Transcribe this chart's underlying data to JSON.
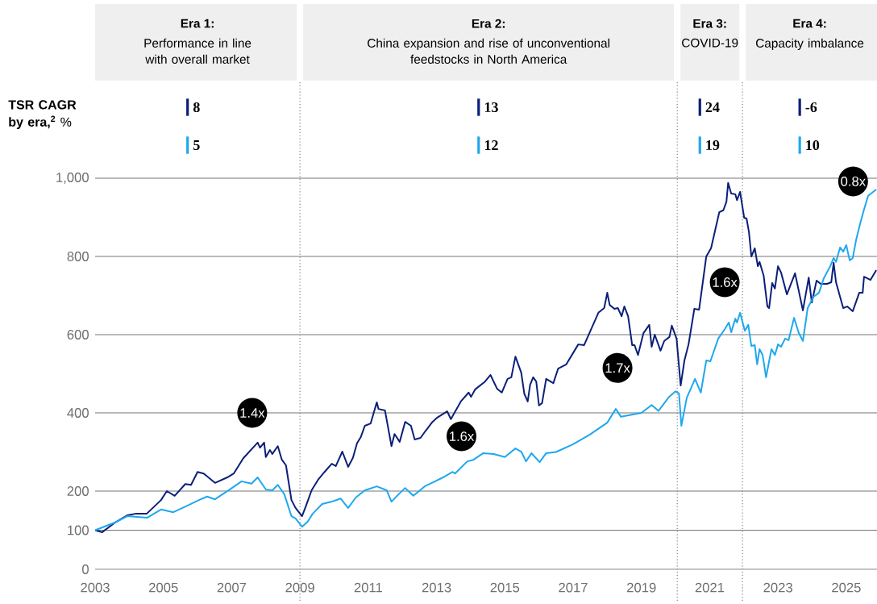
{
  "chart_data": {
    "type": "line",
    "series": [
      {
        "color": "#0b1f7a",
        "x": [
          2003.0,
          2003.21,
          2003.59,
          2003.94,
          2004.18,
          2004.51,
          2004.93,
          2005.1,
          2005.33,
          2005.64,
          2005.81,
          2006.0,
          2006.18,
          2006.51,
          2006.87,
          2007.06,
          2007.34,
          2007.76,
          2007.83,
          2007.95,
          2008.0,
          2008.12,
          2008.19,
          2008.35,
          2008.47,
          2008.59,
          2008.75,
          2008.87,
          2009.06,
          2009.18,
          2009.34,
          2009.53,
          2009.72,
          2009.93,
          2010.05,
          2010.24,
          2010.41,
          2010.55,
          2010.67,
          2010.78,
          2010.9,
          2011.07,
          2011.25,
          2011.3,
          2011.49,
          2011.68,
          2011.77,
          2011.92,
          2012.08,
          2012.25,
          2012.36,
          2012.53,
          2012.67,
          2012.88,
          2013.02,
          2013.31,
          2013.42,
          2013.71,
          2013.94,
          2014.01,
          2014.13,
          2014.42,
          2014.58,
          2014.77,
          2014.91,
          2015.08,
          2015.19,
          2015.31,
          2015.48,
          2015.57,
          2015.67,
          2015.74,
          2015.83,
          2015.92,
          2016.0,
          2016.09,
          2016.21,
          2016.42,
          2016.56,
          2016.8,
          2017.15,
          2017.32,
          2017.74,
          2017.91,
          2018.0,
          2018.07,
          2018.21,
          2018.31,
          2018.42,
          2018.5,
          2018.61,
          2018.73,
          2018.8,
          2018.9,
          2019.06,
          2019.23,
          2019.3,
          2019.39,
          2019.56,
          2019.67,
          2019.82,
          2019.89,
          2020.03,
          2020.15,
          2020.26,
          2020.38,
          2020.55,
          2020.69,
          2020.9,
          2021.04,
          2021.28,
          2021.4,
          2021.49,
          2021.54,
          2021.63,
          2021.75,
          2021.8,
          2021.89,
          2022.01,
          2022.08,
          2022.15,
          2022.22,
          2022.32,
          2022.41,
          2022.46,
          2022.58,
          2022.69,
          2022.74,
          2022.83,
          2022.91,
          2023.0,
          2023.09,
          2023.26,
          2023.5,
          2023.73,
          2023.9,
          2023.99,
          2024.13,
          2024.25,
          2024.44,
          2024.56,
          2024.63,
          2024.7,
          2024.91,
          2025.03,
          2025.19,
          2025.38,
          2025.48,
          2025.52,
          2025.71,
          2025.88
        ],
        "values": [
          100,
          95,
          120,
          138,
          142,
          142,
          177,
          200,
          188,
          218,
          216,
          249,
          245,
          221,
          235,
          245,
          284,
          324,
          311,
          324,
          287,
          305,
          295,
          315,
          280,
          266,
          177,
          157,
          136,
          163,
          202,
          229,
          249,
          270,
          264,
          301,
          262,
          285,
          322,
          338,
          367,
          373,
          427,
          410,
          406,
          315,
          346,
          326,
          377,
          367,
          332,
          336,
          353,
          377,
          388,
          404,
          384,
          429,
          452,
          441,
          460,
          480,
          497,
          462,
          452,
          487,
          491,
          544,
          503,
          449,
          429,
          472,
          491,
          480,
          419,
          425,
          487,
          476,
          513,
          524,
          575,
          573,
          656,
          668,
          707,
          676,
          666,
          668,
          647,
          672,
          647,
          573,
          573,
          548,
          604,
          625,
          569,
          600,
          559,
          584,
          594,
          623,
          590,
          470,
          534,
          575,
          666,
          664,
          800,
          821,
          913,
          918,
          940,
          988,
          961,
          959,
          944,
          965,
          899,
          897,
          862,
          800,
          821,
          775,
          786,
          751,
          672,
          668,
          732,
          718,
          775,
          759,
          703,
          757,
          662,
          746,
          682,
          738,
          730,
          730,
          734,
          784,
          734,
          668,
          672,
          660,
          707,
          707,
          748,
          740,
          765
        ]
      },
      {
        "color": "#1ea8ee",
        "x": [
          2003.0,
          2003.59,
          2003.94,
          2004.53,
          2004.93,
          2005.29,
          2005.71,
          2006.04,
          2006.28,
          2006.51,
          2006.94,
          2007.29,
          2007.58,
          2007.76,
          2008.0,
          2008.19,
          2008.35,
          2008.54,
          2008.75,
          2008.87,
          2009.06,
          2009.23,
          2009.37,
          2009.65,
          2009.93,
          2010.19,
          2010.41,
          2010.64,
          2010.9,
          2011.25,
          2011.54,
          2011.68,
          2011.89,
          2012.08,
          2012.32,
          2012.65,
          2012.91,
          2013.19,
          2013.47,
          2013.54,
          2013.9,
          2014.08,
          2014.37,
          2014.67,
          2015.0,
          2015.31,
          2015.48,
          2015.62,
          2015.78,
          2016.02,
          2016.21,
          2016.5,
          2017.0,
          2017.5,
          2018.0,
          2018.25,
          2018.4,
          2019.0,
          2019.3,
          2019.5,
          2019.8,
          2020.0,
          2020.1,
          2020.17,
          2020.33,
          2020.57,
          2020.74,
          2020.9,
          2021.02,
          2021.25,
          2021.44,
          2021.56,
          2021.63,
          2021.75,
          2021.8,
          2021.89,
          2022.03,
          2022.13,
          2022.22,
          2022.32,
          2022.39,
          2022.46,
          2022.55,
          2022.65,
          2022.74,
          2022.81,
          2022.91,
          2023.0,
          2023.09,
          2023.21,
          2023.31,
          2023.47,
          2023.61,
          2023.73,
          2023.87,
          2024.04,
          2024.2,
          2024.34,
          2024.53,
          2024.63,
          2024.7,
          2024.82,
          2024.91,
          2025.0,
          2025.1,
          2025.19,
          2025.29,
          2025.41,
          2025.52,
          2025.64,
          2025.88
        ],
        "values": [
          100,
          120,
          136,
          132,
          153,
          146,
          163,
          177,
          186,
          179,
          204,
          225,
          219,
          235,
          204,
          202,
          216,
          192,
          136,
          130,
          109,
          122,
          142,
          167,
          173,
          181,
          157,
          184,
          202,
          212,
          202,
          173,
          192,
          208,
          188,
          212,
          223,
          235,
          249,
          245,
          276,
          280,
          297,
          295,
          287,
          309,
          301,
          276,
          297,
          274,
          297,
          300,
          320,
          345,
          375,
          410,
          390,
          400,
          420,
          405,
          440,
          455,
          450,
          367,
          439,
          487,
          452,
          534,
          532,
          590,
          614,
          631,
          606,
          641,
          631,
          656,
          610,
          625,
          571,
          573,
          524,
          563,
          548,
          491,
          532,
          563,
          548,
          575,
          569,
          590,
          586,
          643,
          604,
          584,
          668,
          697,
          707,
          744,
          775,
          796,
          786,
          823,
          812,
          829,
          790,
          796,
          843,
          885,
          920,
          955,
          971
        ]
      }
    ],
    "xlim": [
      2003,
      2025.9
    ],
    "ylim": [
      0,
      1000
    ],
    "xticks": [
      2003,
      2005,
      2007,
      2009,
      2011,
      2013,
      2015,
      2017,
      2019,
      2021,
      2023,
      2025
    ],
    "yticks": [
      0,
      100,
      200,
      400,
      600,
      800,
      {
        "value": 1000,
        "label": "1,000"
      }
    ],
    "grid": "y",
    "ref_lines": [
      {
        "axis": "x",
        "value": 2009,
        "line_style": "dotted"
      },
      {
        "axis": "x",
        "value": 2020.05,
        "line_style": "dotted"
      },
      {
        "axis": "x",
        "value": 2021.96,
        "line_style": "dotted"
      }
    ],
    "annotations": [
      "Era 1:",
      "Performance in line with overall market",
      "Era 2:",
      "China expansion and rise of unconventional feedstocks in North America",
      "Era 3:",
      "COVID-19",
      "Era 4:",
      "Capacity imbalance",
      "**TSR CAGR by era,$^{2}$** %",
      "8",
      "5",
      "13",
      "12",
      "24",
      "19",
      "-6",
      "10",
      {
        "text": "1.4x",
        "x": 2007.6,
        "y": 400
      },
      {
        "text": "1.6x",
        "x": 2013.73,
        "y": 340
      },
      {
        "text": "1.7x",
        "x": 2018.3,
        "y": 515
      },
      {
        "text": "1.6x",
        "x": 2021.44,
        "y": 734
      },
      {
        "text": "0.8x",
        "x": 2025.2,
        "y": 992
      }
    ]
  }
}
